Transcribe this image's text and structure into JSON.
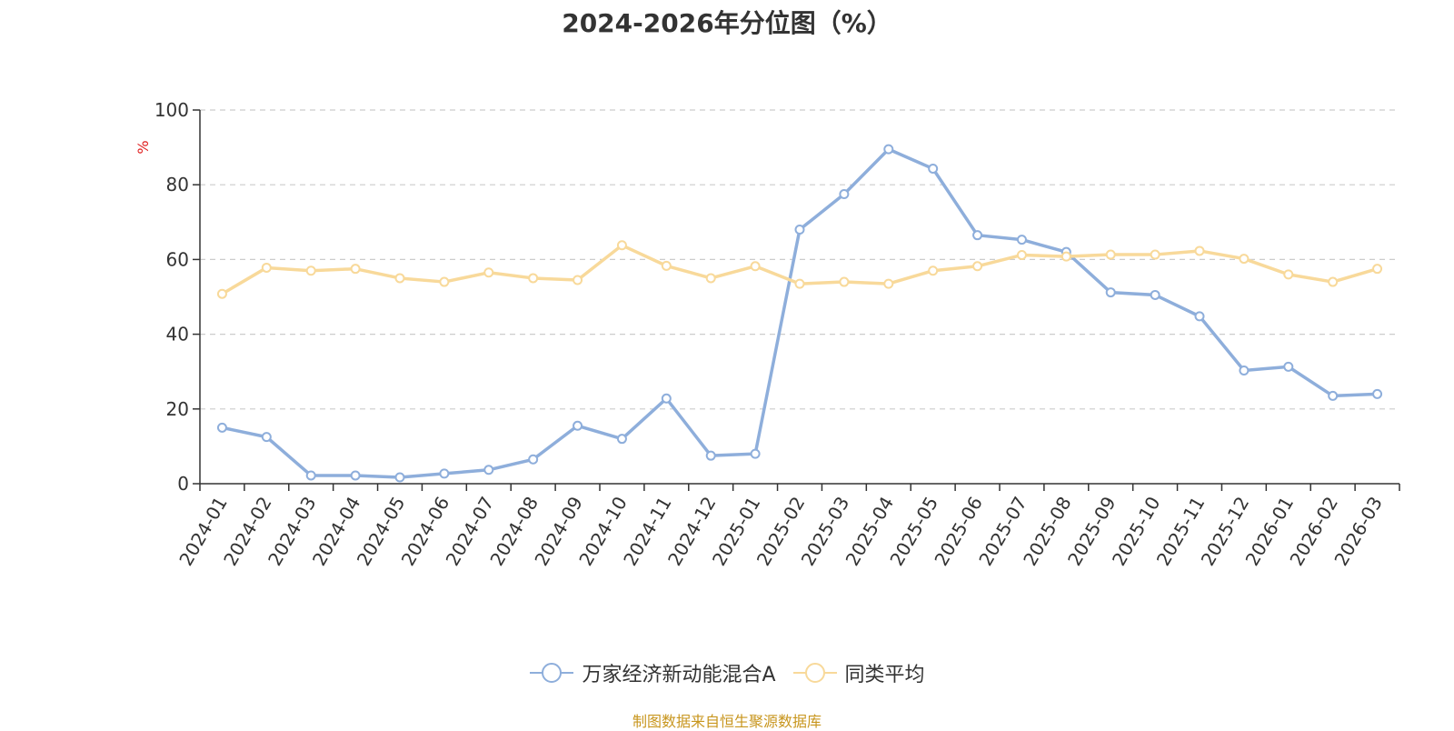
{
  "chart_data": {
    "type": "line",
    "title": "2024-2026年分位图（%）",
    "ylabel": "%",
    "xlabel": "",
    "ylim": [
      0,
      100
    ],
    "y_ticks": [
      0,
      20,
      40,
      60,
      80,
      100
    ],
    "grid": true,
    "legend_position": "bottom",
    "categories": [
      "2024-01",
      "2024-02",
      "2024-03",
      "2024-04",
      "2024-05",
      "2024-06",
      "2024-07",
      "2024-08",
      "2024-09",
      "2024-10",
      "2024-11",
      "2024-12",
      "2025-01",
      "2025-02",
      "2025-03",
      "2025-04",
      "2025-05",
      "2025-06",
      "2025-07",
      "2025-08",
      "2025-09",
      "2025-10",
      "2025-11",
      "2025-12",
      "2026-01",
      "2026-02",
      "2026-03"
    ],
    "series": [
      {
        "name": "万家经济新动能混合A",
        "color": "#8eaedb",
        "values": [
          15.0,
          12.5,
          2.2,
          2.2,
          1.7,
          2.7,
          3.7,
          6.5,
          15.5,
          12.0,
          22.8,
          7.5,
          8.0,
          68.0,
          77.5,
          89.5,
          84.3,
          66.5,
          65.3,
          62.0,
          51.2,
          50.5,
          44.8,
          30.3,
          31.3,
          23.5,
          24.0
        ]
      },
      {
        "name": "同类平均",
        "color": "#f8d99a",
        "values": [
          50.8,
          57.8,
          57.0,
          57.5,
          55.0,
          54.0,
          56.5,
          55.0,
          54.5,
          63.8,
          58.3,
          55.0,
          58.2,
          53.5,
          54.0,
          53.5,
          57.0,
          58.2,
          61.2,
          60.8,
          61.3,
          61.3,
          62.3,
          60.2,
          56.0,
          54.0,
          57.5
        ]
      }
    ]
  },
  "source_text": "制图数据来自恒生聚源数据库"
}
